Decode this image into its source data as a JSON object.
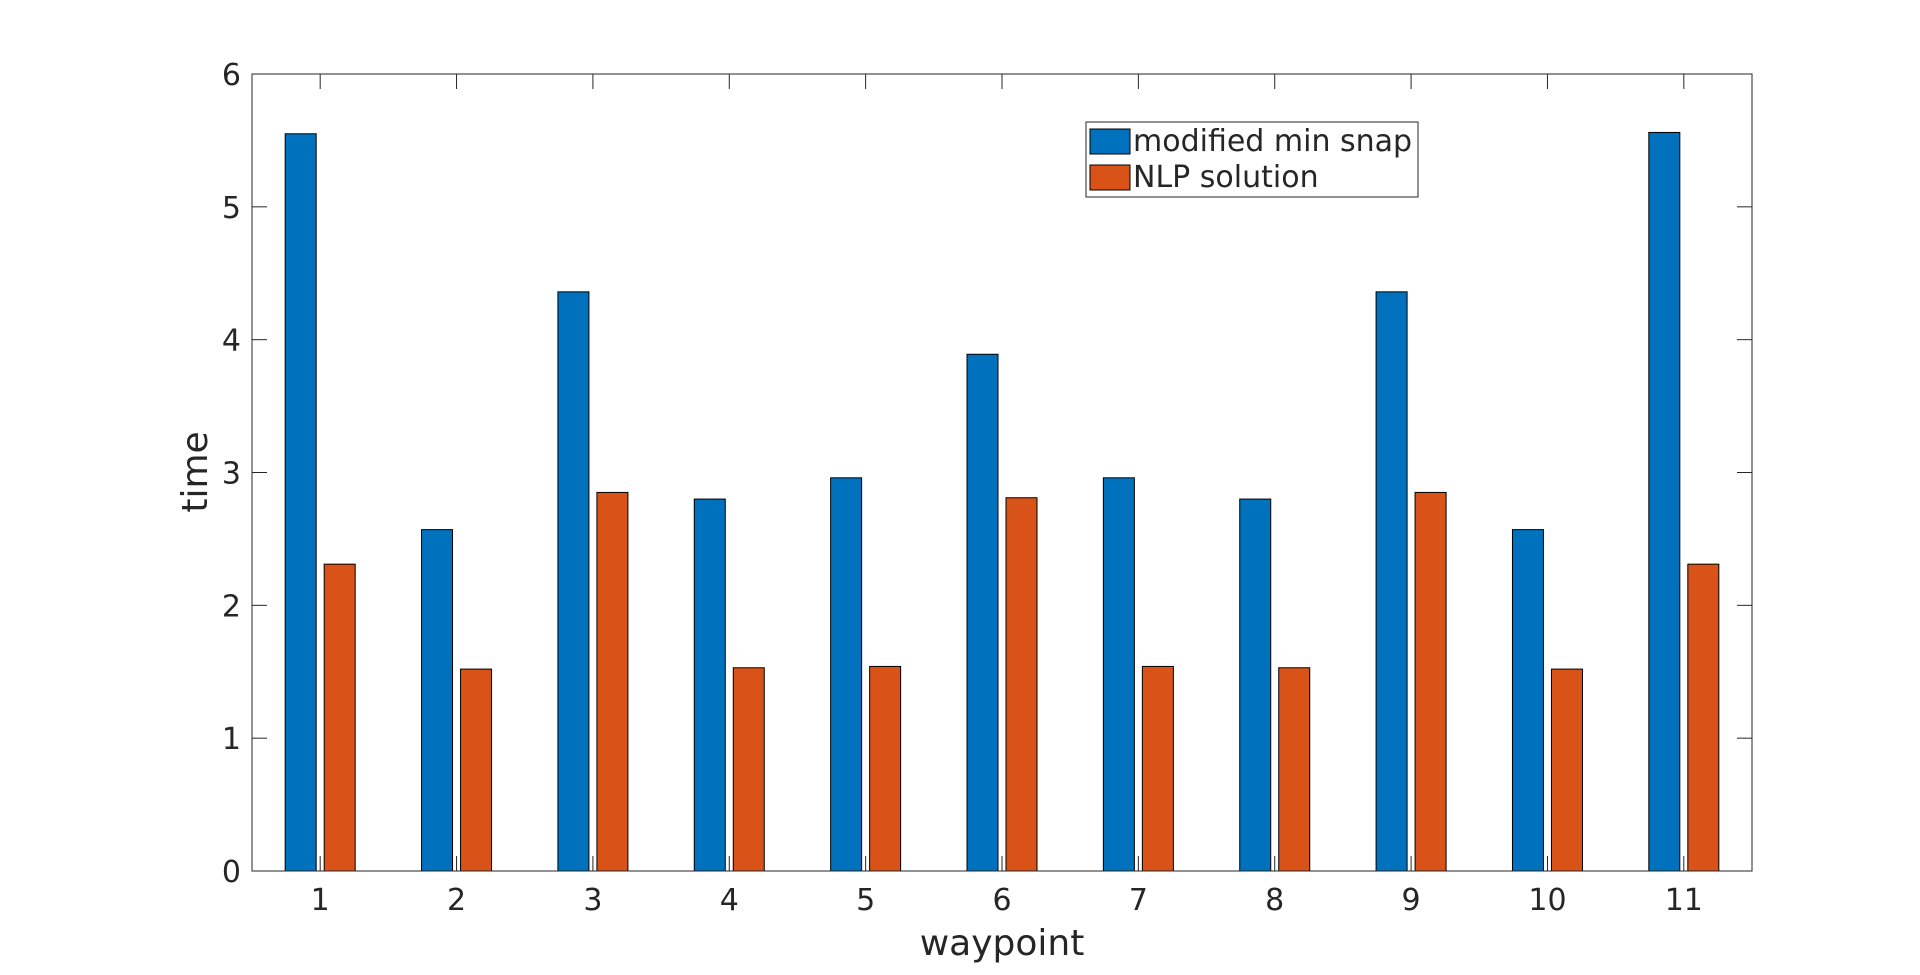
{
  "chart_data": {
    "type": "bar",
    "title": "",
    "xlabel": "waypoint",
    "ylabel": "time",
    "categories": [
      "1",
      "2",
      "3",
      "4",
      "5",
      "6",
      "7",
      "8",
      "9",
      "10",
      "11"
    ],
    "ylim": [
      0,
      6
    ],
    "yticks": [
      0,
      1,
      2,
      3,
      4,
      5,
      6
    ],
    "grid": false,
    "legend_position": "top-center",
    "series": [
      {
        "name": "modified min snap",
        "color": "#0072BD",
        "values": [
          5.55,
          2.57,
          4.36,
          2.8,
          2.96,
          3.89,
          2.96,
          2.8,
          4.36,
          2.57,
          5.56
        ]
      },
      {
        "name": "NLP solution",
        "color": "#D95319",
        "values": [
          2.31,
          1.52,
          2.85,
          1.53,
          1.54,
          2.81,
          1.54,
          1.53,
          2.85,
          1.52,
          2.31
        ]
      }
    ]
  }
}
